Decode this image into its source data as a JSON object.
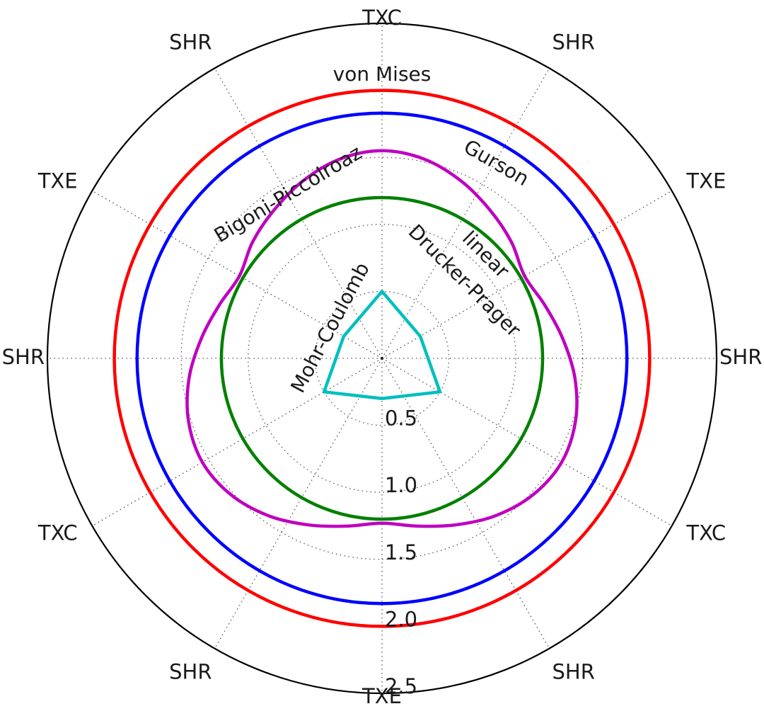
{
  "chart_data": {
    "type": "radar",
    "angle_labels": [
      "TXC",
      "SHR",
      "TXE",
      "SHR",
      "TXC",
      "SHR",
      "TXE",
      "SHR",
      "TXC",
      "SHR",
      "TXE",
      "SHR"
    ],
    "radial_ticks": [
      "0.5",
      "1.0",
      "1.5",
      "2.0",
      "2.5"
    ],
    "radial_tick_values": [
      0.5,
      1.0,
      1.5,
      2.0,
      2.5
    ],
    "rlim": [
      0,
      2.5
    ],
    "grid": true,
    "series": [
      {
        "name": "von Mises",
        "color": "#ff0000",
        "radius": 2.0
      },
      {
        "name": "Gurson",
        "color": "#0000ff",
        "radius": 1.83
      },
      {
        "name": "linear Drucker-Prager",
        "color": "#008000",
        "radius": 1.2
      },
      {
        "name": "Bigoni-Piccolroaz",
        "color": "#bf00bf",
        "polar_points": [
          {
            "theta": 0,
            "r": 1.55
          },
          {
            "theta": 12,
            "r": 1.52
          },
          {
            "theta": 24,
            "r": 1.45
          },
          {
            "theta": 36,
            "r": 1.37
          },
          {
            "theta": 48,
            "r": 1.3
          },
          {
            "theta": 60,
            "r": 1.23
          },
          {
            "theta": 72,
            "r": 1.28
          },
          {
            "theta": 84,
            "r": 1.36
          },
          {
            "theta": 96,
            "r": 1.45
          },
          {
            "theta": 108,
            "r": 1.52
          },
          {
            "theta": 120,
            "r": 1.55
          },
          {
            "theta": 132,
            "r": 1.52
          },
          {
            "theta": 144,
            "r": 1.45
          },
          {
            "theta": 156,
            "r": 1.36
          },
          {
            "theta": 168,
            "r": 1.28
          },
          {
            "theta": 180,
            "r": 1.23
          },
          {
            "theta": 192,
            "r": 1.28
          },
          {
            "theta": 204,
            "r": 1.36
          },
          {
            "theta": 216,
            "r": 1.45
          },
          {
            "theta": 228,
            "r": 1.52
          },
          {
            "theta": 240,
            "r": 1.55
          },
          {
            "theta": 252,
            "r": 1.52
          },
          {
            "theta": 264,
            "r": 1.45
          },
          {
            "theta": 276,
            "r": 1.36
          },
          {
            "theta": 288,
            "r": 1.28
          },
          {
            "theta": 300,
            "r": 1.23
          },
          {
            "theta": 312,
            "r": 1.3
          },
          {
            "theta": 324,
            "r": 1.37
          },
          {
            "theta": 336,
            "r": 1.45
          },
          {
            "theta": 348,
            "r": 1.52
          }
        ]
      },
      {
        "name": "Mohr-Coulomb",
        "color": "#00bfbf",
        "polar_points": [
          {
            "theta": 0,
            "r": 0.5
          },
          {
            "theta": 60,
            "r": 0.33
          },
          {
            "theta": 120,
            "r": 0.5
          },
          {
            "theta": 180,
            "r": 0.3
          },
          {
            "theta": 240,
            "r": 0.5
          },
          {
            "theta": 300,
            "r": 0.33
          }
        ]
      }
    ],
    "curve_labels": [
      {
        "text": "von Mises"
      },
      {
        "text": "Gurson"
      },
      {
        "text": "Bigoni-Piccolroaz"
      },
      {
        "text": "linear"
      },
      {
        "text": "Drucker-Prager"
      },
      {
        "text": "Mohr-Coulomb"
      }
    ]
  }
}
